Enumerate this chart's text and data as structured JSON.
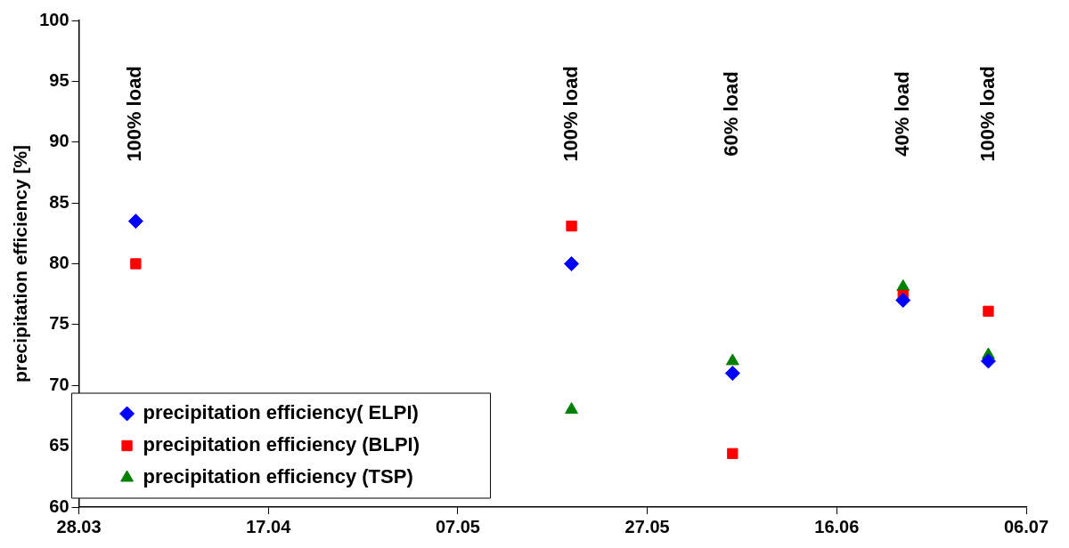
{
  "chart_data": {
    "type": "scatter",
    "ylabel": "precipitation efficiency [%]",
    "x": [
      "--04-03",
      "--05-19",
      "--06-05",
      "--06-23",
      "--07-02"
    ],
    "series": [
      {
        "name": "precipitation efficiency( ELPI)",
        "color": "#0000ff",
        "marker": "diamond",
        "values": [
          83.5,
          80,
          71,
          77,
          72
        ]
      },
      {
        "name": "precipitation efficiency (BLPI)",
        "color": "#ff0000",
        "marker": "square",
        "values": [
          80,
          83.1,
          64.4,
          77.4,
          76.1
        ]
      },
      {
        "name": "precipitation efficiency (TSP)",
        "color": "#008000",
        "marker": "triangle",
        "values": [
          null,
          68,
          72,
          78.1,
          72.5
        ]
      }
    ],
    "xlim": [
      "--03-28",
      "--07-06"
    ],
    "xticks": [
      {
        "value": "--03-28",
        "label": "28.03"
      },
      {
        "value": "--04-17",
        "label": "17.04"
      },
      {
        "value": "--05-07",
        "label": "07.05"
      },
      {
        "value": "--05-27",
        "label": "27.05"
      },
      {
        "value": "--06-16",
        "label": "16.06"
      },
      {
        "value": "--07-06",
        "label": "06.07"
      }
    ],
    "ylim": [
      60,
      100
    ],
    "yticks": [
      60,
      65,
      70,
      75,
      80,
      85,
      90,
      95,
      100
    ],
    "grid": false,
    "legend": "bottom left",
    "annotations": [
      "100% load",
      "100% load",
      "60% load",
      "40% load",
      "100% load"
    ]
  }
}
